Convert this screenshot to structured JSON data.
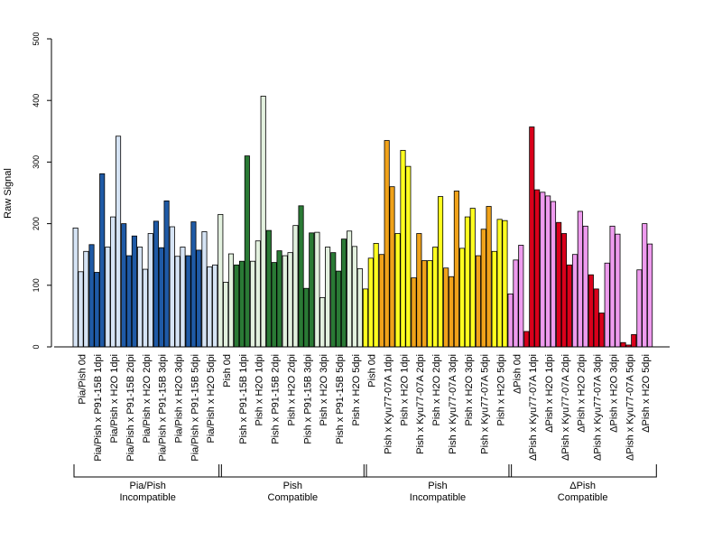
{
  "chart_data": {
    "type": "bar",
    "ylabel": "Raw Signal",
    "ylim": [
      0,
      500
    ],
    "yticks": [
      0,
      100,
      200,
      300,
      400,
      500
    ],
    "groups": [
      {
        "name": "Pia/Pish\nIncompatible",
        "light_color": "#d6e4f5",
        "dark_color": "#1f5aa6",
        "conditions": [
          {
            "label": "Pia/Pish 0d",
            "type": "light",
            "values": [
              193,
              122,
              155
            ]
          },
          {
            "label": "Pia/Pish x P91-15B 1dpi",
            "type": "dark",
            "values": [
              166,
              121,
              281
            ]
          },
          {
            "label": "Pia/Pish x H2O 1dpi",
            "type": "light",
            "values": [
              162,
              211,
              342
            ]
          },
          {
            "label": "Pia/Pish x P91-15B 2dpi",
            "type": "dark",
            "values": [
              200,
              148,
              180
            ]
          },
          {
            "label": "Pia/Pish x H2O 2dpi",
            "type": "light",
            "values": [
              162,
              126,
              184
            ]
          },
          {
            "label": "Pia/Pish x P91-15B 3dpi",
            "type": "dark",
            "values": [
              204,
              161,
              237
            ]
          },
          {
            "label": "Pia/Pish x H2O 3dpi",
            "type": "light",
            "values": [
              195,
              147,
              162
            ]
          },
          {
            "label": "Pia/Pish x P91-15B 5dpi",
            "type": "dark",
            "values": [
              148,
              203,
              157
            ]
          },
          {
            "label": "Pia/Pish x H2O 5dpi",
            "type": "light",
            "values": [
              187,
              130,
              133
            ]
          }
        ]
      },
      {
        "name": "Pish\nCompatible",
        "light_color": "#e3f1df",
        "dark_color": "#2a7a35",
        "conditions": [
          {
            "label": "Pish 0d",
            "type": "light",
            "values": [
              215,
              105,
              151
            ]
          },
          {
            "label": "Pish x P91-15B 1dpi",
            "type": "dark",
            "values": [
              133,
              139,
              310
            ]
          },
          {
            "label": "Pish x H2O 1dpi",
            "type": "light",
            "values": [
              139,
              172,
              407
            ]
          },
          {
            "label": "Pish x P91-15B 2dpi",
            "type": "dark",
            "values": [
              189,
              137,
              156
            ]
          },
          {
            "label": "Pish x H2O 2dpi",
            "type": "light",
            "values": [
              148,
              153,
              197
            ]
          },
          {
            "label": "Pish x P91-15B 3dpi",
            "type": "dark",
            "values": [
              229,
              95,
              185
            ]
          },
          {
            "label": "Pish x H2O 3dpi",
            "type": "light",
            "values": [
              186,
              80,
              162
            ]
          },
          {
            "label": "Pish x P91-15B 5dpi",
            "type": "dark",
            "values": [
              153,
              123,
              175
            ]
          },
          {
            "label": "Pish x H2O 5dpi",
            "type": "light",
            "values": [
              188,
              163,
              127
            ]
          }
        ]
      },
      {
        "name": "Pish\nIncompatible",
        "light_color": "#ffff1f",
        "dark_color": "#f0a21a",
        "conditions": [
          {
            "label": "Pish 0d",
            "type": "light",
            "values": [
              94,
              144,
              168
            ]
          },
          {
            "label": "Pish x Kyu77-07A 1dpi",
            "type": "dark",
            "values": [
              150,
              335,
              260
            ]
          },
          {
            "label": "Pish x H2O 1dpi",
            "type": "light",
            "values": [
              184,
              319,
              293
            ]
          },
          {
            "label": "Pish x Kyu77-07A 2dpi",
            "type": "dark",
            "values": [
              112,
              184,
              140
            ]
          },
          {
            "label": "Pish x H2O 2dpi",
            "type": "light",
            "values": [
              140,
              162,
              244
            ]
          },
          {
            "label": "Pish x Kyu77-07A 3dpi",
            "type": "dark",
            "values": [
              128,
              114,
              253
            ]
          },
          {
            "label": "Pish x H2O 3dpi",
            "type": "light",
            "values": [
              160,
              211,
              225
            ]
          },
          {
            "label": "Pish x Kyu77-07A 5dpi",
            "type": "dark",
            "values": [
              148,
              191,
              228
            ]
          },
          {
            "label": "Pish x H2O 5dpi",
            "type": "light",
            "values": [
              155,
              207,
              205
            ]
          }
        ]
      },
      {
        "name": "ΔPish\nCompatible",
        "light_color": "#ee9bee",
        "dark_color": "#d9001b",
        "conditions": [
          {
            "label": "ΔPish 0d",
            "type": "light",
            "values": [
              86,
              141,
              165
            ]
          },
          {
            "label": "ΔPish x Kyu77-07A 1dpi",
            "type": "dark",
            "values": [
              25,
              357,
              255
            ]
          },
          {
            "label": "ΔPish x H2O 1dpi",
            "type": "light",
            "values": [
              251,
              245,
              236
            ]
          },
          {
            "label": "ΔPish x Kyu77-07A 2dpi",
            "type": "dark",
            "values": [
              202,
              184,
              133
            ]
          },
          {
            "label": "ΔPish x H2O 2dpi",
            "type": "light",
            "values": [
              150,
              220,
              196
            ]
          },
          {
            "label": "ΔPish x Kyu77-07A 3dpi",
            "type": "dark",
            "values": [
              117,
              94,
              55
            ]
          },
          {
            "label": "ΔPish x H2O 3dpi",
            "type": "light",
            "values": [
              136,
              196,
              183
            ]
          },
          {
            "label": "ΔPish x Kyu77-07A 5dpi",
            "type": "dark",
            "values": [
              7,
              3,
              20
            ]
          },
          {
            "label": "ΔPish x H2O 5dpi",
            "type": "light",
            "values": [
              125,
              200,
              167
            ]
          }
        ]
      }
    ]
  }
}
